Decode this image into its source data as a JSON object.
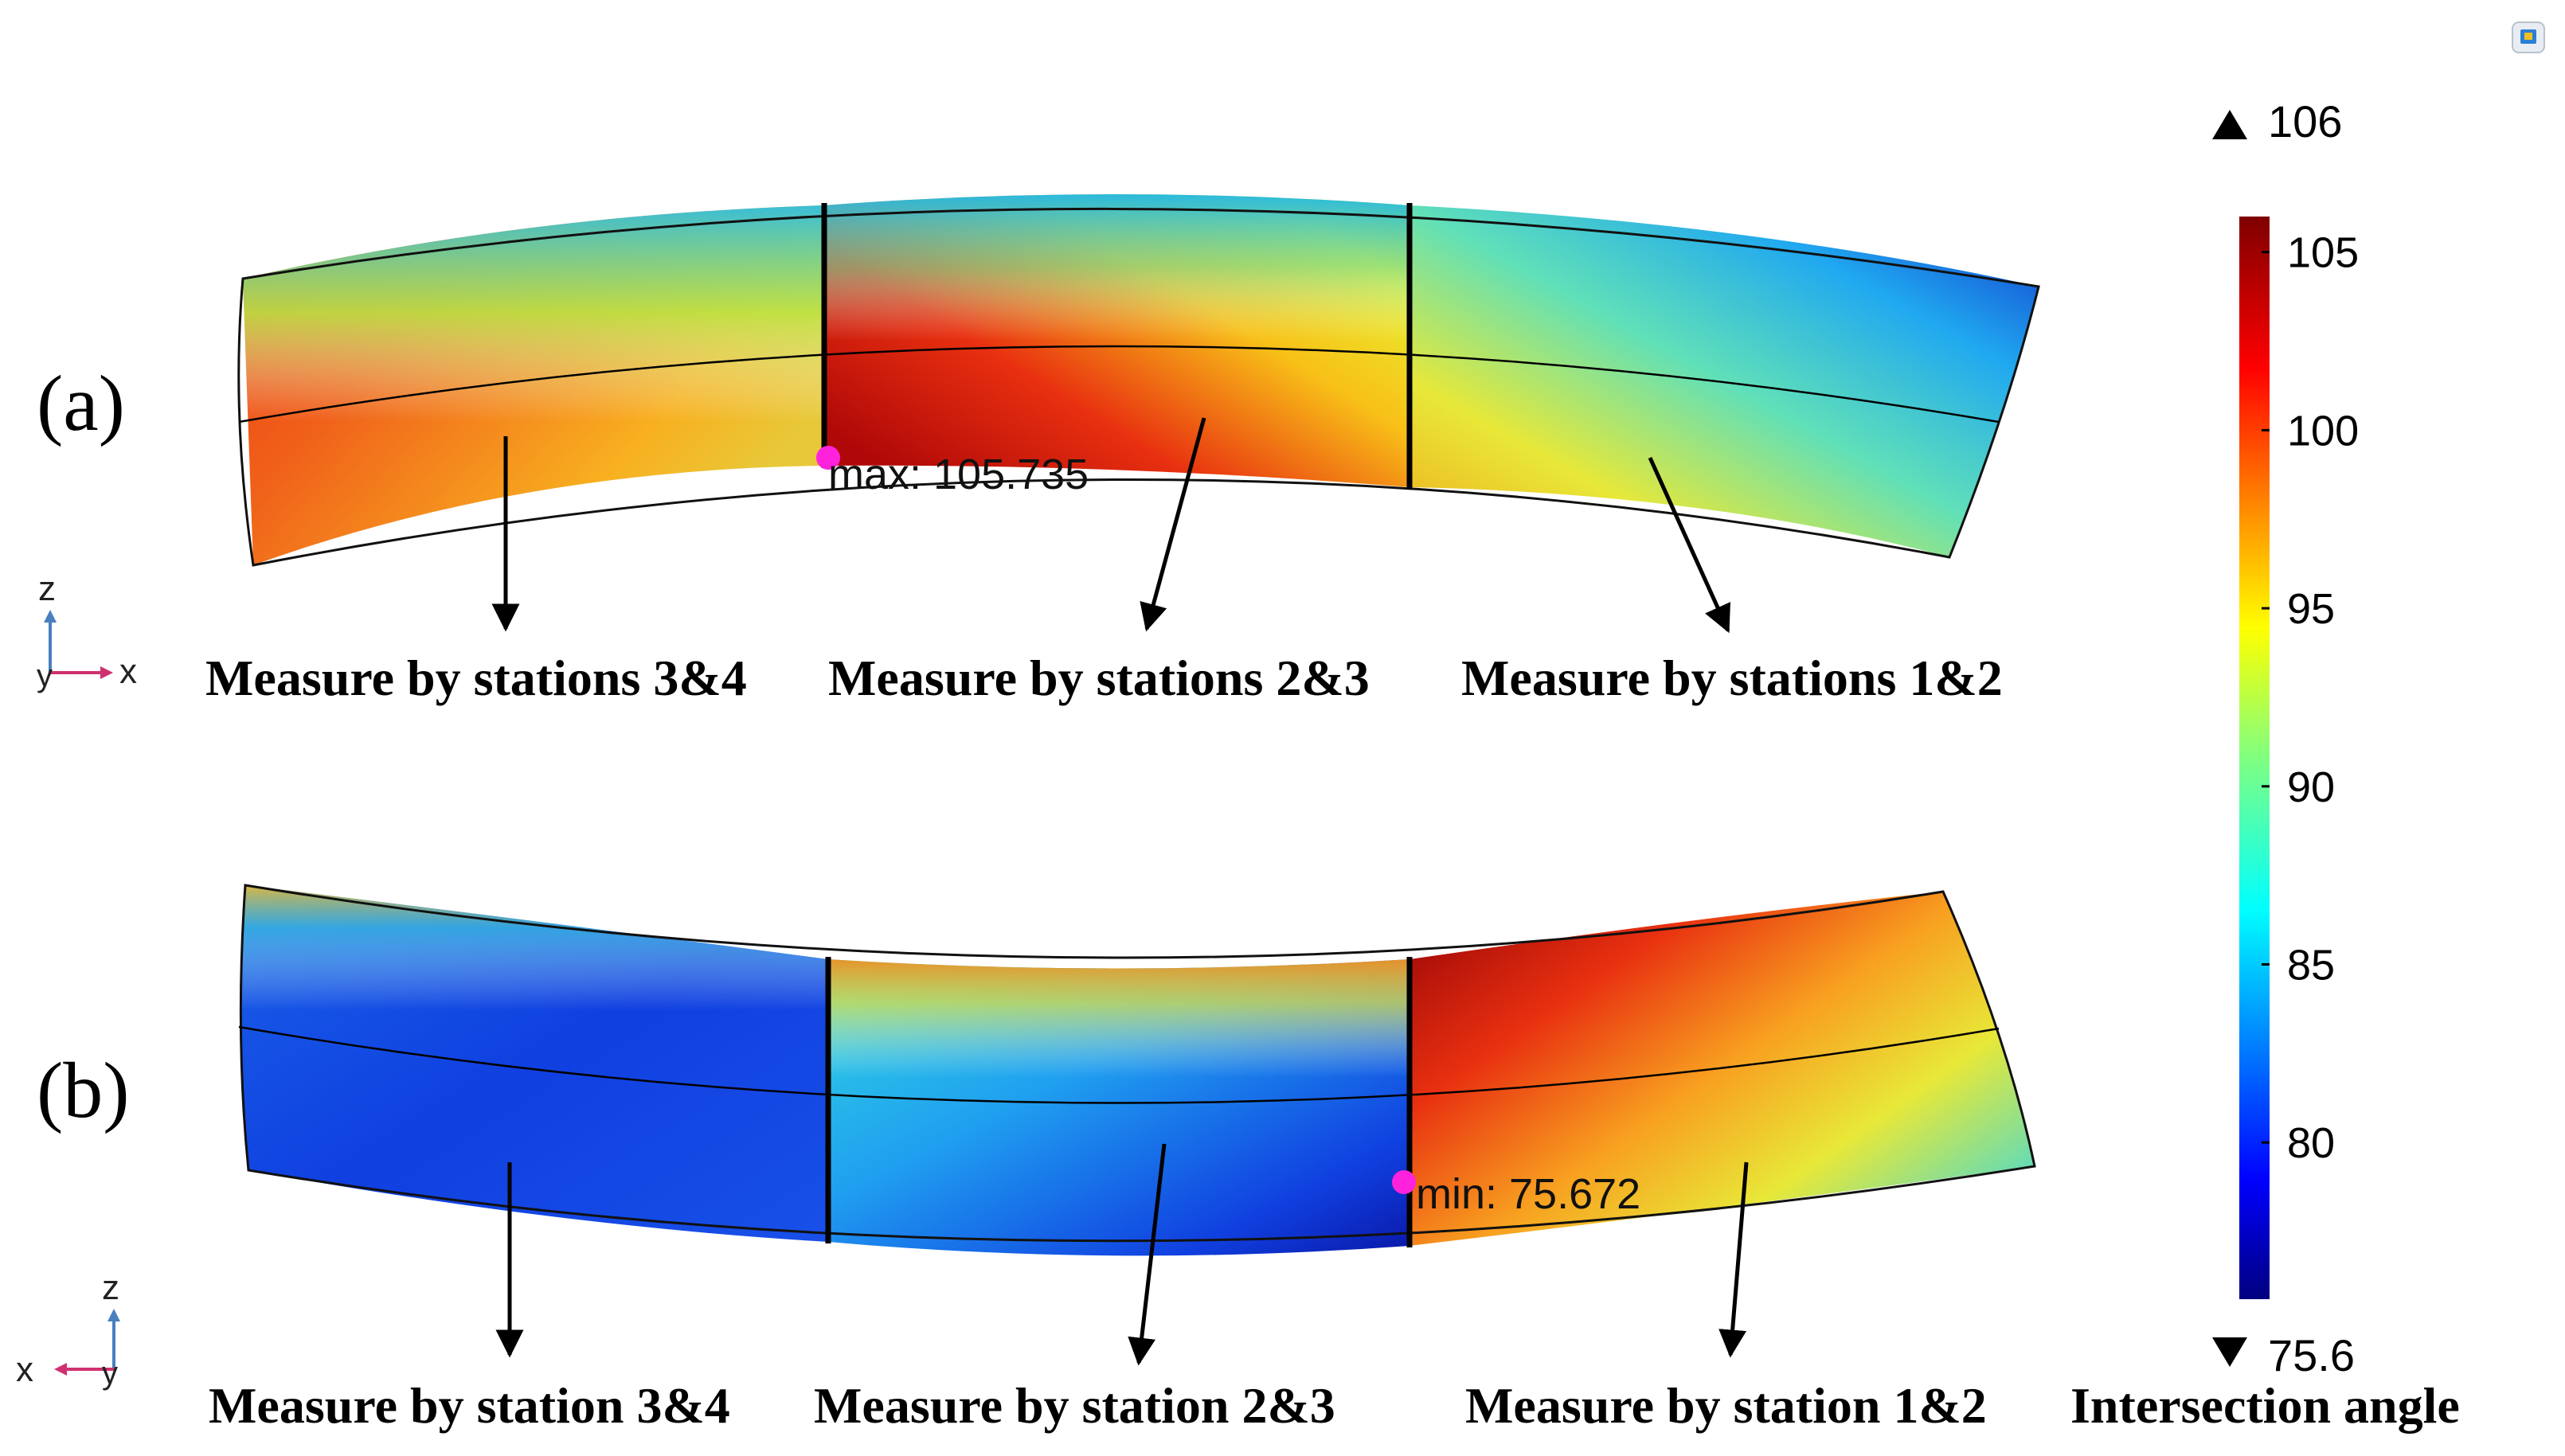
{
  "panels": [
    {
      "label": "(a)",
      "axis_triad": {
        "up": "z",
        "right": "x",
        "out": "y"
      },
      "marker": {
        "text": "max: 105.735",
        "value": 105.735,
        "color": "#ff22dd"
      },
      "captions": [
        "Measure by stations 3&4",
        "Measure by stations 2&3",
        "Measure by stations 1&2"
      ]
    },
    {
      "label": "(b)",
      "axis_triad": {
        "up": "z",
        "left": "x",
        "out": "y"
      },
      "marker": {
        "text": "min: 75.672",
        "value": 75.672,
        "color": "#ff22dd"
      },
      "captions": [
        "Measure by station 3&4",
        "Measure by station 2&3",
        "Measure by station 1&2"
      ]
    }
  ],
  "colorbar": {
    "title": "Intersection angle",
    "max_marker": "106",
    "min_marker": "75.6",
    "ticks": [
      "105",
      "100",
      "95",
      "90",
      "85",
      "80"
    ],
    "tick_values": [
      105,
      100,
      95,
      90,
      85,
      80
    ],
    "range": [
      75.6,
      106
    ],
    "colormap": [
      "#00007f",
      "#0000ff",
      "#0080ff",
      "#00ffff",
      "#80ff80",
      "#ffff00",
      "#ff8000",
      "#ff0000",
      "#7f0000"
    ]
  },
  "icons": {
    "corner": "view-cube-icon"
  }
}
